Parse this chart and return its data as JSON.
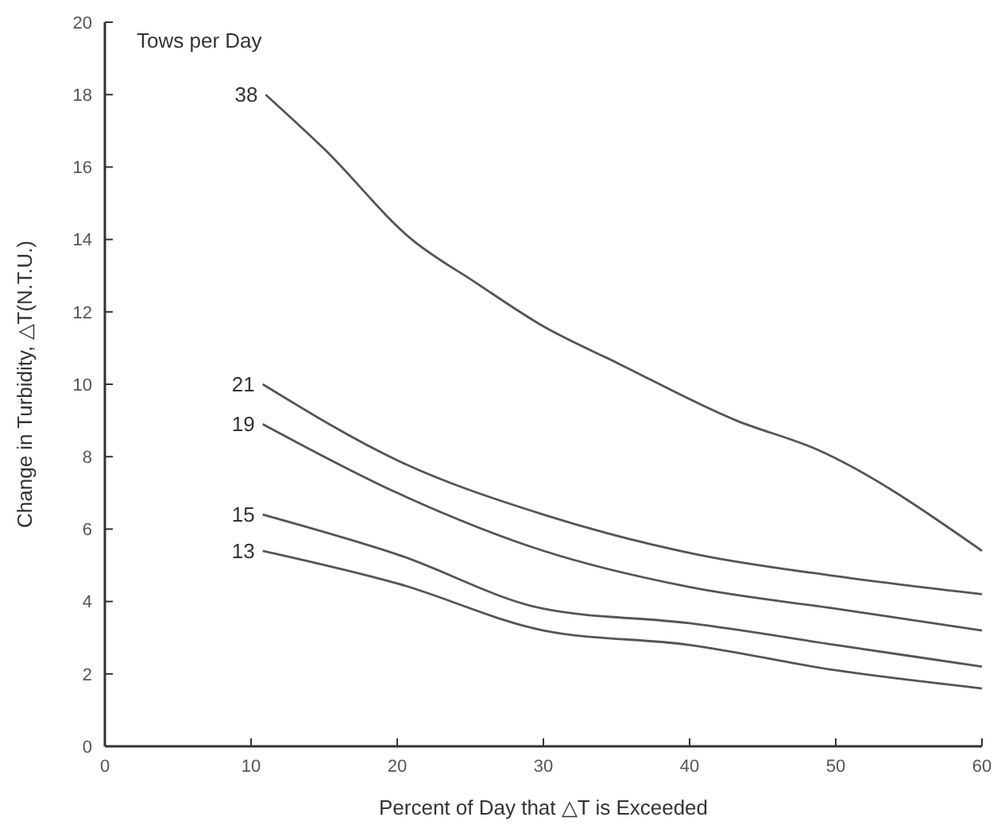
{
  "chart_data": {
    "type": "line",
    "legend_title": "Tows per Day",
    "xlabel": "Percent of Day that △T is Exceeded",
    "ylabel": "Change in Turbidity, △T(N.T.U.)",
    "xlim": [
      0,
      60
    ],
    "xticks": [
      0,
      10,
      20,
      30,
      40,
      50,
      60
    ],
    "ylim": [
      0,
      20
    ],
    "yticks": [
      0,
      2,
      4,
      6,
      8,
      10,
      12,
      14,
      16,
      18,
      20
    ],
    "grid": false,
    "series": [
      {
        "name": "38",
        "color": "#555555",
        "x": [
          11,
          15,
          21,
          25.4,
          30,
          35,
          43.2,
          48.7,
          60
        ],
        "values": [
          18,
          16.5,
          14,
          12.8,
          11.6,
          10.6,
          9,
          8.2,
          5.4
        ]
      },
      {
        "name": "21",
        "color": "#555555",
        "x": [
          10.8,
          20,
          30,
          40.5,
          50,
          60
        ],
        "values": [
          10,
          7.9,
          6.4,
          5.3,
          4.7,
          4.2
        ]
      },
      {
        "name": "19",
        "color": "#555555",
        "x": [
          10.8,
          20,
          30,
          40,
          50,
          60
        ],
        "values": [
          8.9,
          7,
          5.4,
          4.4,
          3.8,
          3.2
        ]
      },
      {
        "name": "15",
        "color": "#555555",
        "x": [
          10.8,
          20,
          30,
          40,
          50,
          60
        ],
        "values": [
          6.4,
          5.3,
          3.8,
          3.4,
          2.8,
          2.2
        ]
      },
      {
        "name": "13",
        "color": "#555555",
        "x": [
          10.8,
          20,
          30,
          40,
          50,
          60
        ],
        "values": [
          5.4,
          4.5,
          3.2,
          2.8,
          2.1,
          1.6
        ]
      }
    ]
  }
}
